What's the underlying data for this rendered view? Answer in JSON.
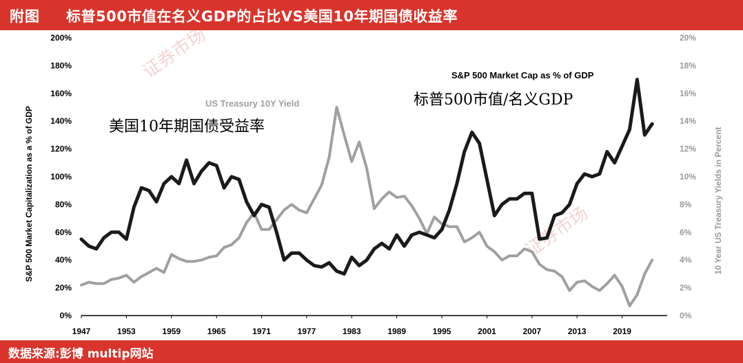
{
  "header": {
    "figure_label": "附图",
    "title": "标普500市值在名义GDP的占比VS美国10年期国债收益率"
  },
  "footer": {
    "source": "数据来源:彭博    multip网站"
  },
  "annotations": {
    "sp500_label_en": "S&P 500 Market Cap as % of GDP",
    "sp500_label_cn": "标普500市值/名义GDP",
    "treasury_label_en": "US Treasury 10Y Yield",
    "treasury_label_cn": "美国10年期国债受益率",
    "watermark": "证券市场"
  },
  "colors": {
    "header_bg": "#d9342b",
    "sp500_series": "#1a1a1a",
    "treasury_series": "#a0a0a0"
  },
  "chart_data": {
    "type": "line",
    "title": "标普500市值在名义GDP的占比VS美国10年期国债收益率",
    "xlabel": "",
    "ylabel": "S&P 500 Market Capitalization as a % of GDP",
    "ylabel_right": "10 Year US Treasury Yields in Percent",
    "x_ticks": [
      "1947",
      "1953",
      "1959",
      "1965",
      "1971",
      "1977",
      "1983",
      "1989",
      "1995",
      "2001",
      "2007",
      "2013",
      "2019"
    ],
    "y_ticks_left": [
      "0%",
      "20%",
      "40%",
      "60%",
      "80%",
      "100%",
      "120%",
      "140%",
      "160%",
      "180%",
      "200%"
    ],
    "y_ticks_right": [
      "0%",
      "2%",
      "4%",
      "6%",
      "8%",
      "10%",
      "12%",
      "14%",
      "16%",
      "18%",
      "20%"
    ],
    "xlim": [
      1947,
      2025
    ],
    "ylim_left": [
      0,
      200
    ],
    "ylim_right": [
      0,
      20
    ],
    "grid": false,
    "series": [
      {
        "name": "S&P 500 Market Cap as % of GDP",
        "axis": "left",
        "x": [
          1947,
          1948,
          1949,
          1950,
          1951,
          1952,
          1953,
          1954,
          1955,
          1956,
          1957,
          1958,
          1959,
          1960,
          1961,
          1962,
          1963,
          1964,
          1965,
          1966,
          1967,
          1968,
          1969,
          1970,
          1971,
          1972,
          1973,
          1974,
          1975,
          1976,
          1977,
          1978,
          1979,
          1980,
          1981,
          1982,
          1983,
          1984,
          1985,
          1986,
          1987,
          1988,
          1989,
          1990,
          1991,
          1992,
          1993,
          1994,
          1995,
          1996,
          1997,
          1998,
          1999,
          2000,
          2001,
          2002,
          2003,
          2004,
          2005,
          2006,
          2007,
          2008,
          2009,
          2010,
          2011,
          2012,
          2013,
          2014,
          2015,
          2016,
          2017,
          2018,
          2019,
          2020,
          2021,
          2022,
          2023
        ],
        "values": [
          55,
          50,
          48,
          56,
          60,
          60,
          55,
          78,
          92,
          90,
          82,
          95,
          100,
          95,
          112,
          95,
          104,
          110,
          108,
          92,
          100,
          98,
          82,
          72,
          80,
          78,
          60,
          40,
          45,
          45,
          40,
          36,
          35,
          38,
          32,
          30,
          42,
          36,
          40,
          48,
          52,
          48,
          58,
          50,
          58,
          60,
          58,
          56,
          62,
          76,
          95,
          118,
          132,
          124,
          98,
          72,
          80,
          84,
          84,
          88,
          88,
          55,
          56,
          72,
          74,
          80,
          95,
          102,
          100,
          102,
          118,
          110,
          122,
          134,
          170,
          130,
          138
        ]
      },
      {
        "name": "US Treasury 10Y Yield",
        "axis": "right",
        "x": [
          1947,
          1948,
          1949,
          1950,
          1951,
          1952,
          1953,
          1954,
          1955,
          1956,
          1957,
          1958,
          1959,
          1960,
          1961,
          1962,
          1963,
          1964,
          1965,
          1966,
          1967,
          1968,
          1969,
          1970,
          1971,
          1972,
          1973,
          1974,
          1975,
          1976,
          1977,
          1978,
          1979,
          1980,
          1981,
          1982,
          1983,
          1984,
          1985,
          1986,
          1987,
          1988,
          1989,
          1990,
          1991,
          1992,
          1993,
          1994,
          1995,
          1996,
          1997,
          1998,
          1999,
          2000,
          2001,
          2002,
          2003,
          2004,
          2005,
          2006,
          2007,
          2008,
          2009,
          2010,
          2011,
          2012,
          2013,
          2014,
          2015,
          2016,
          2017,
          2018,
          2019,
          2020,
          2021,
          2022,
          2023
        ],
        "values": [
          2.2,
          2.4,
          2.3,
          2.3,
          2.6,
          2.7,
          2.9,
          2.4,
          2.8,
          3.1,
          3.4,
          3.1,
          4.4,
          4.1,
          3.9,
          3.9,
          4.0,
          4.2,
          4.3,
          4.9,
          5.1,
          5.6,
          6.7,
          7.4,
          6.2,
          6.2,
          6.9,
          7.6,
          8.0,
          7.6,
          7.4,
          8.4,
          9.4,
          11.4,
          15.0,
          13.0,
          11.1,
          12.5,
          10.6,
          7.7,
          8.4,
          8.9,
          8.5,
          8.6,
          7.9,
          7.0,
          5.9,
          7.1,
          6.6,
          6.4,
          6.4,
          5.3,
          5.6,
          6.0,
          5.0,
          4.6,
          4.0,
          4.3,
          4.3,
          4.8,
          4.6,
          3.7,
          3.3,
          3.2,
          2.8,
          1.8,
          2.4,
          2.5,
          2.1,
          1.8,
          2.3,
          2.9,
          2.1,
          0.7,
          1.5,
          3.0,
          4.0
        ]
      }
    ]
  }
}
